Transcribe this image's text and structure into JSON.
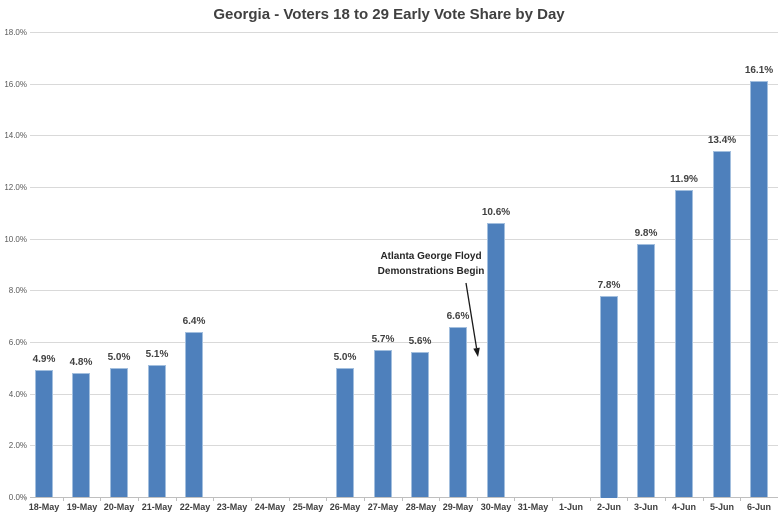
{
  "chart_data": {
    "type": "bar",
    "title": "Georgia - Voters 18 to 29 Early Vote Share by Day",
    "categories": [
      "18-May",
      "19-May",
      "20-May",
      "21-May",
      "22-May",
      "23-May",
      "24-May",
      "25-May",
      "26-May",
      "27-May",
      "28-May",
      "29-May",
      "30-May",
      "31-May",
      "1-Jun",
      "2-Jun",
      "3-Jun",
      "4-Jun",
      "5-Jun",
      "6-Jun"
    ],
    "values": [
      4.9,
      4.8,
      5.0,
      5.1,
      6.4,
      null,
      null,
      null,
      5.0,
      5.7,
      5.6,
      6.6,
      10.6,
      null,
      null,
      7.8,
      9.8,
      11.9,
      13.4,
      16.1
    ],
    "data_labels": [
      "4.9%",
      "4.8%",
      "5.0%",
      "5.1%",
      "6.4%",
      "",
      "",
      "",
      "5.0%",
      "5.7%",
      "5.6%",
      "6.6%",
      "10.6%",
      "",
      "",
      "7.8%",
      "9.8%",
      "11.9%",
      "13.4%",
      "16.1%"
    ],
    "xlabel": "",
    "ylabel": "",
    "ylim": [
      0,
      18
    ],
    "ytick_step": 2,
    "ytick_labels": [
      "0.0%",
      "2.0%",
      "4.0%",
      "6.0%",
      "8.0%",
      "10.0%",
      "12.0%",
      "14.0%",
      "16.0%",
      "18.0%"
    ],
    "grid": true,
    "legend": "none",
    "annotation": {
      "lines": [
        "Atlanta George Floyd",
        "Demonstrations Begin"
      ],
      "target_category": "30-May"
    },
    "colors": {
      "bar_fill": "#4E80BC",
      "bar_border": "#A3BFDE",
      "gridline": "#D9D9D9",
      "axis_line": "#BFBFBF",
      "title_text": "#404040",
      "tick_text": "#595959",
      "label_text": "#404040",
      "annotation_text": "#262626",
      "arrow": "#1A1A1A",
      "background": "#FFFFFF"
    }
  }
}
